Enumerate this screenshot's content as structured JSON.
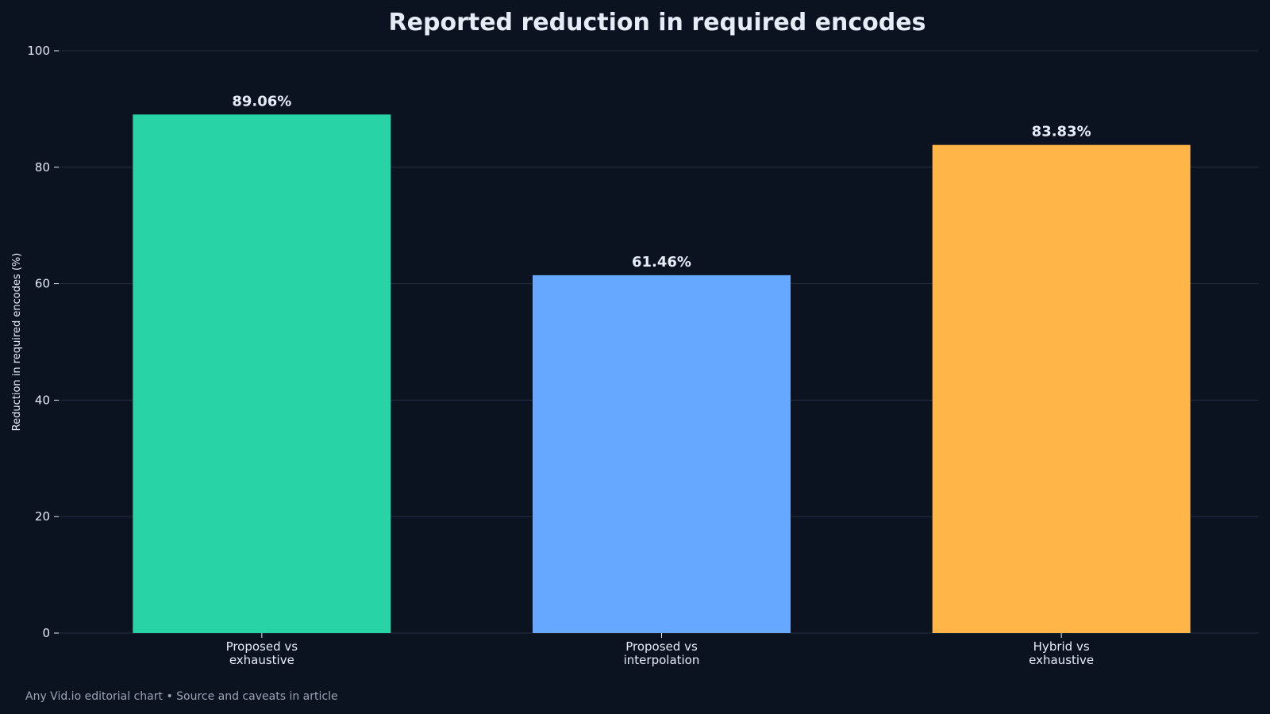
{
  "chart_data": {
    "type": "bar",
    "title": "Reported reduction in required encodes",
    "ylabel": "Reduction in required encodes (%)",
    "xlabel": "",
    "ylim": [
      0,
      100
    ],
    "yticks": [
      0,
      20,
      40,
      60,
      80,
      100
    ],
    "grid": true,
    "categories": [
      [
        "Proposed vs",
        "exhaustive"
      ],
      [
        "Proposed vs",
        "interpolation"
      ],
      [
        "Hybrid vs",
        "exhaustive"
      ]
    ],
    "values": [
      89.06,
      61.46,
      83.83
    ],
    "value_labels": [
      "89.06%",
      "61.46%",
      "83.83%"
    ],
    "colors": [
      "#28d3a5",
      "#66a8ff",
      "#ffb547"
    ]
  },
  "footer": "Any Vid.io editorial chart • Source and caveats in article",
  "theme": {
    "background": "#0b1220",
    "text": "#e6edf7",
    "grid": "#243042",
    "muted": "#9aa6b8"
  }
}
